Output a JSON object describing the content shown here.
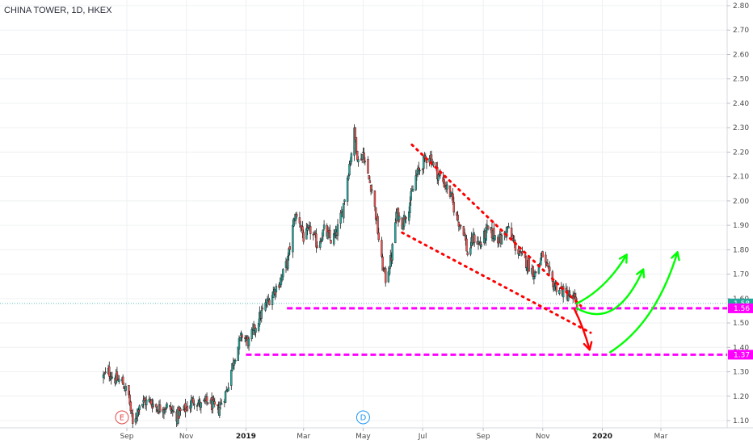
{
  "chart_title": "CHINA TOWER, 1D, HKEX",
  "chart_data": {
    "type": "candlestick",
    "title": "CHINA TOWER, 1D, HKEX",
    "ylim": [
      1.05,
      2.82
    ],
    "y_ticks": [
      "2.80",
      "2.70",
      "2.60",
      "2.50",
      "2.40",
      "2.30",
      "2.20",
      "2.10",
      "2.00",
      "1.90",
      "1.80",
      "1.70",
      "1.60",
      "1.50",
      "1.40",
      "1.30",
      "1.20",
      "1.10"
    ],
    "x_ticks": [
      {
        "label": "Sep",
        "date": "2018-09-01",
        "bold": false
      },
      {
        "label": "Nov",
        "date": "2018-11-01",
        "bold": false
      },
      {
        "label": "2019",
        "date": "2019-01-01",
        "bold": true
      },
      {
        "label": "Mar",
        "date": "2019-03-01",
        "bold": false
      },
      {
        "label": "May",
        "date": "2019-05-01",
        "bold": false
      },
      {
        "label": "Jul",
        "date": "2019-07-01",
        "bold": false
      },
      {
        "label": "Sep",
        "date": "2019-09-01",
        "bold": false
      },
      {
        "label": "Nov",
        "date": "2019-11-01",
        "bold": false
      },
      {
        "label": "2020",
        "date": "2020-01-01",
        "bold": true
      },
      {
        "label": "Mar",
        "date": "2020-03-01",
        "bold": false
      }
    ],
    "price_path": [
      [
        "2018-08-08",
        1.28
      ],
      [
        "2018-08-13",
        1.3
      ],
      [
        "2018-08-20",
        1.27
      ],
      [
        "2018-08-27",
        1.26
      ],
      [
        "2018-09-03",
        1.2
      ],
      [
        "2018-09-07",
        1.08
      ],
      [
        "2018-09-14",
        1.17
      ],
      [
        "2018-09-24",
        1.18
      ],
      [
        "2018-10-03",
        1.15
      ],
      [
        "2018-10-12",
        1.16
      ],
      [
        "2018-10-22",
        1.12
      ],
      [
        "2018-11-01",
        1.15
      ],
      [
        "2018-11-09",
        1.19
      ],
      [
        "2018-11-16",
        1.16
      ],
      [
        "2018-11-23",
        1.18
      ],
      [
        "2018-12-03",
        1.14
      ],
      [
        "2018-12-12",
        1.22
      ],
      [
        "2018-12-20",
        1.36
      ],
      [
        "2018-12-28",
        1.45
      ],
      [
        "2019-01-04",
        1.42
      ],
      [
        "2019-01-11",
        1.49
      ],
      [
        "2019-01-18",
        1.55
      ],
      [
        "2019-01-28",
        1.62
      ],
      [
        "2019-02-06",
        1.68
      ],
      [
        "2019-02-13",
        1.76
      ],
      [
        "2019-02-20",
        1.94
      ],
      [
        "2019-02-25",
        1.92
      ],
      [
        "2019-03-01",
        1.85
      ],
      [
        "2019-03-08",
        1.88
      ],
      [
        "2019-03-15",
        1.82
      ],
      [
        "2019-03-22",
        1.88
      ],
      [
        "2019-03-29",
        1.84
      ],
      [
        "2019-04-03",
        1.86
      ],
      [
        "2019-04-10",
        1.96
      ],
      [
        "2019-04-15",
        2.1
      ],
      [
        "2019-04-22",
        2.28
      ],
      [
        "2019-04-26",
        2.16
      ],
      [
        "2019-05-01",
        2.2
      ],
      [
        "2019-05-06",
        2.1
      ],
      [
        "2019-05-10",
        2.05
      ],
      [
        "2019-05-14",
        1.94
      ],
      [
        "2019-05-20",
        1.75
      ],
      [
        "2019-05-24",
        1.68
      ],
      [
        "2019-05-30",
        1.77
      ],
      [
        "2019-06-04",
        1.95
      ],
      [
        "2019-06-10",
        1.91
      ],
      [
        "2019-06-17",
        1.98
      ],
      [
        "2019-06-24",
        2.1
      ],
      [
        "2019-07-02",
        2.16
      ],
      [
        "2019-07-08",
        2.19
      ],
      [
        "2019-07-15",
        2.12
      ],
      [
        "2019-07-22",
        2.08
      ],
      [
        "2019-07-29",
        2.03
      ],
      [
        "2019-08-05",
        1.93
      ],
      [
        "2019-08-12",
        1.88
      ],
      [
        "2019-08-16",
        1.78
      ],
      [
        "2019-08-22",
        1.85
      ],
      [
        "2019-08-29",
        1.82
      ],
      [
        "2019-09-05",
        1.88
      ],
      [
        "2019-09-12",
        1.86
      ],
      [
        "2019-09-19",
        1.84
      ],
      [
        "2019-09-26",
        1.89
      ],
      [
        "2019-10-03",
        1.82
      ],
      [
        "2019-10-10",
        1.77
      ],
      [
        "2019-10-17",
        1.74
      ],
      [
        "2019-10-24",
        1.7
      ],
      [
        "2019-11-01",
        1.78
      ],
      [
        "2019-11-05",
        1.72
      ],
      [
        "2019-11-11",
        1.66
      ],
      [
        "2019-11-18",
        1.64
      ],
      [
        "2019-11-25",
        1.62
      ],
      [
        "2019-12-02",
        1.6
      ],
      [
        "2019-12-06",
        1.58
      ]
    ],
    "annotations": {
      "last_price_line": 1.58,
      "price_badges": [
        {
          "label": "1.58",
          "value": 1.58,
          "color": "#26a69a"
        },
        {
          "label": "1.56",
          "value": 1.56,
          "color": "#ff00ff"
        },
        {
          "label": "1.37",
          "value": 1.37,
          "color": "#ff00ff"
        }
      ],
      "support_levels": [
        {
          "value": 1.56,
          "from": "2019-02-12",
          "color": "#ff00ff"
        },
        {
          "value": 1.37,
          "from": "2019-01-01",
          "color": "#ff00ff"
        }
      ],
      "channel_lines": [
        {
          "from": [
            "2019-06-20",
            2.23
          ],
          "to": [
            "2019-12-10",
            1.57
          ],
          "color": "#ff0000"
        },
        {
          "from": [
            "2019-06-10",
            1.87
          ],
          "to": [
            "2019-12-20",
            1.46
          ],
          "color": "#ff0000"
        }
      ],
      "scenario_arrows": [
        {
          "path": [
            [
              "2019-12-03",
              1.56
            ],
            [
              "2019-12-13",
              1.48
            ],
            [
              "2019-12-19",
              1.39
            ]
          ],
          "color": "#ff0000"
        },
        {
          "path": [
            [
              "2019-12-06",
              1.58
            ],
            [
              "2020-01-05",
              1.64
            ],
            [
              "2020-01-26",
              1.78
            ]
          ],
          "color": "#00ff00"
        },
        {
          "path": [
            [
              "2019-12-06",
              1.56
            ],
            [
              "2020-01-15",
              1.47
            ],
            [
              "2020-02-12",
              1.72
            ]
          ],
          "color": "#00ff00"
        },
        {
          "path": [
            [
              "2020-01-09",
              1.38
            ],
            [
              "2020-02-25",
              1.5
            ],
            [
              "2020-03-18",
              1.79
            ]
          ],
          "color": "#00ff00"
        }
      ],
      "events": [
        {
          "label": "E",
          "date": "2018-08-27",
          "color": "#e04a4a"
        },
        {
          "label": "D",
          "date": "2019-05-01",
          "color": "#2196f3"
        }
      ]
    },
    "legend": "none",
    "grid": true,
    "colors": {
      "up": "#26a69a",
      "down": "#ef5350",
      "candle_body": "#1e1e1e",
      "background": "#ffffff"
    }
  }
}
